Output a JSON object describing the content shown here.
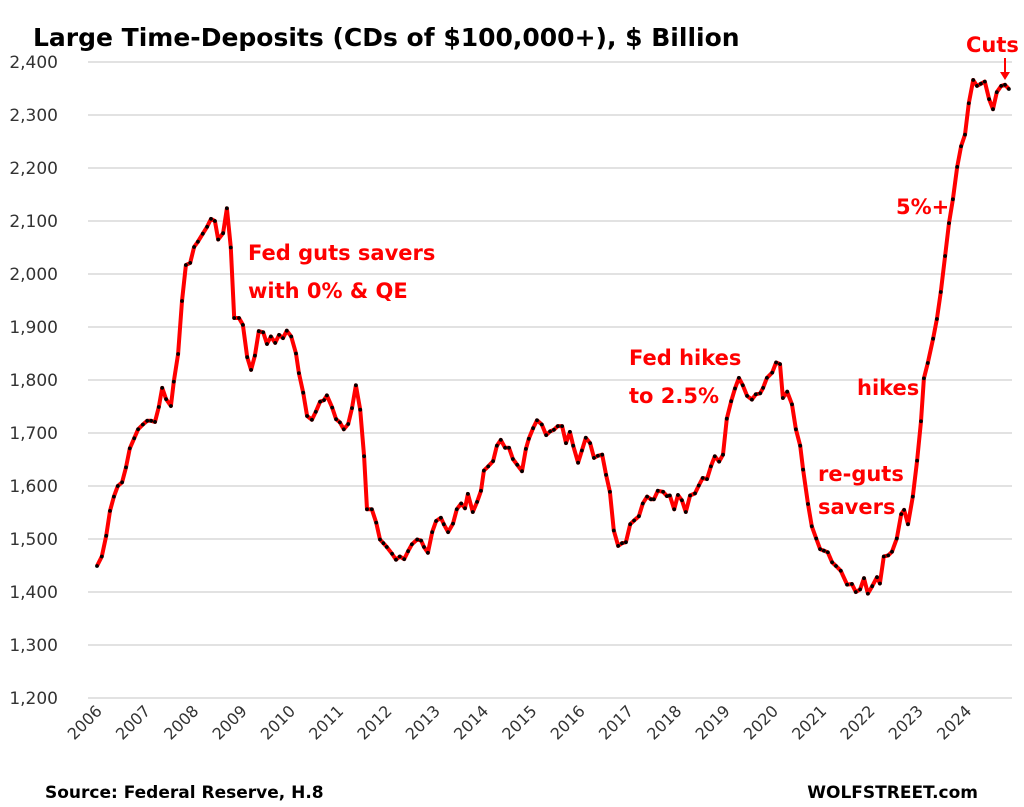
{
  "chart_data": {
    "type": "line",
    "title": "Large Time-Deposits (CDs of $100,000+), $ Billion",
    "xlabel": "",
    "ylabel": "",
    "ylim": [
      1200,
      2400
    ],
    "yticks": [
      "1,200",
      "1,300",
      "1,400",
      "1,500",
      "1,600",
      "1,700",
      "1,800",
      "1,900",
      "2,000",
      "2,100",
      "2,200",
      "2,300",
      "2,400"
    ],
    "ytick_values": [
      1200,
      1300,
      1400,
      1500,
      1600,
      1700,
      1800,
      1900,
      2000,
      2100,
      2200,
      2300,
      2400
    ],
    "xticks": [
      "2006",
      "2007",
      "2008",
      "2009",
      "2010",
      "2011",
      "2012",
      "2013",
      "2014",
      "2015",
      "2016",
      "2017",
      "2018",
      "2019",
      "2020",
      "2021",
      "2022",
      "2023",
      "2024"
    ],
    "grid": "horizontal",
    "colors": {
      "line": "#ff0000",
      "markers": "#000000",
      "annotations": "#ff0000",
      "grid": "#d9d9d9"
    },
    "series": [
      {
        "points": [
          [
            2006.0,
            1449
          ],
          [
            2006.1,
            1467
          ],
          [
            2006.19,
            1506
          ],
          [
            2006.27,
            1553
          ],
          [
            2006.35,
            1580
          ],
          [
            2006.43,
            1600
          ],
          [
            2006.52,
            1607
          ],
          [
            2006.6,
            1635
          ],
          [
            2006.68,
            1671
          ],
          [
            2006.77,
            1690
          ],
          [
            2006.85,
            1707
          ],
          [
            2006.95,
            1716
          ],
          [
            2007.04,
            1723
          ],
          [
            2007.12,
            1723
          ],
          [
            2007.2,
            1721
          ],
          [
            2007.28,
            1749
          ],
          [
            2007.35,
            1785
          ],
          [
            2007.43,
            1764
          ],
          [
            2007.53,
            1751
          ],
          [
            2007.59,
            1797
          ],
          [
            2007.68,
            1849
          ],
          [
            2007.76,
            1949
          ],
          [
            2007.84,
            2017
          ],
          [
            2007.93,
            2021
          ],
          [
            2008.01,
            2051
          ],
          [
            2008.09,
            2061
          ],
          [
            2008.19,
            2076
          ],
          [
            2008.28,
            2089
          ],
          [
            2008.36,
            2104
          ],
          [
            2008.44,
            2100
          ],
          [
            2008.51,
            2065
          ],
          [
            2008.61,
            2077
          ],
          [
            2008.69,
            2124
          ],
          [
            2008.77,
            2050
          ],
          [
            2008.84,
            1917
          ],
          [
            2008.94,
            1917
          ],
          [
            2009.02,
            1904
          ],
          [
            2009.11,
            1843
          ],
          [
            2009.19,
            1819
          ],
          [
            2009.27,
            1846
          ],
          [
            2009.35,
            1892
          ],
          [
            2009.44,
            1890
          ],
          [
            2009.52,
            1868
          ],
          [
            2009.6,
            1882
          ],
          [
            2009.69,
            1870
          ],
          [
            2009.77,
            1885
          ],
          [
            2009.85,
            1879
          ],
          [
            2009.93,
            1893
          ],
          [
            2010.02,
            1882
          ],
          [
            2010.12,
            1850
          ],
          [
            2010.18,
            1813
          ],
          [
            2010.27,
            1776
          ],
          [
            2010.35,
            1732
          ],
          [
            2010.45,
            1725
          ],
          [
            2010.53,
            1740
          ],
          [
            2010.62,
            1759
          ],
          [
            2010.7,
            1762
          ],
          [
            2010.76,
            1771
          ],
          [
            2010.87,
            1748
          ],
          [
            2010.95,
            1726
          ],
          [
            2011.03,
            1720
          ],
          [
            2011.11,
            1707
          ],
          [
            2011.2,
            1717
          ],
          [
            2011.28,
            1747
          ],
          [
            2011.36,
            1790
          ],
          [
            2011.45,
            1744
          ],
          [
            2011.53,
            1656
          ],
          [
            2011.59,
            1556
          ],
          [
            2011.69,
            1556
          ],
          [
            2011.78,
            1531
          ],
          [
            2011.86,
            1499
          ],
          [
            2011.93,
            1492
          ],
          [
            2012.0,
            1485
          ],
          [
            2012.11,
            1472
          ],
          [
            2012.19,
            1461
          ],
          [
            2012.27,
            1467
          ],
          [
            2012.36,
            1462
          ],
          [
            2012.44,
            1477
          ],
          [
            2012.52,
            1490
          ],
          [
            2012.63,
            1499
          ],
          [
            2012.71,
            1497
          ],
          [
            2012.77,
            1485
          ],
          [
            2012.85,
            1474
          ],
          [
            2012.94,
            1513
          ],
          [
            2013.02,
            1534
          ],
          [
            2013.12,
            1540
          ],
          [
            2013.18,
            1528
          ],
          [
            2013.27,
            1513
          ],
          [
            2013.37,
            1529
          ],
          [
            2013.45,
            1556
          ],
          [
            2013.54,
            1567
          ],
          [
            2013.62,
            1558
          ],
          [
            2013.68,
            1585
          ],
          [
            2013.78,
            1551
          ],
          [
            2013.87,
            1570
          ],
          [
            2013.95,
            1591
          ],
          [
            2014.01,
            1629
          ],
          [
            2014.1,
            1637
          ],
          [
            2014.2,
            1647
          ],
          [
            2014.28,
            1676
          ],
          [
            2014.36,
            1687
          ],
          [
            2014.45,
            1672
          ],
          [
            2014.53,
            1672
          ],
          [
            2014.61,
            1651
          ],
          [
            2014.7,
            1640
          ],
          [
            2014.8,
            1628
          ],
          [
            2014.88,
            1670
          ],
          [
            2014.94,
            1689
          ],
          [
            2015.03,
            1709
          ],
          [
            2015.11,
            1724
          ],
          [
            2015.21,
            1716
          ],
          [
            2015.3,
            1696
          ],
          [
            2015.38,
            1703
          ],
          [
            2015.46,
            1706
          ],
          [
            2015.54,
            1713
          ],
          [
            2015.63,
            1713
          ],
          [
            2015.71,
            1681
          ],
          [
            2015.79,
            1702
          ],
          [
            2015.86,
            1676
          ],
          [
            2015.96,
            1644
          ],
          [
            2016.04,
            1667
          ],
          [
            2016.12,
            1691
          ],
          [
            2016.21,
            1681
          ],
          [
            2016.29,
            1653
          ],
          [
            2016.37,
            1657
          ],
          [
            2016.46,
            1659
          ],
          [
            2016.54,
            1621
          ],
          [
            2016.62,
            1589
          ],
          [
            2016.7,
            1516
          ],
          [
            2016.79,
            1487
          ],
          [
            2016.87,
            1492
          ],
          [
            2016.95,
            1494
          ],
          [
            2017.04,
            1528
          ],
          [
            2017.12,
            1535
          ],
          [
            2017.22,
            1543
          ],
          [
            2017.3,
            1567
          ],
          [
            2017.39,
            1580
          ],
          [
            2017.47,
            1575
          ],
          [
            2017.53,
            1575
          ],
          [
            2017.61,
            1591
          ],
          [
            2017.72,
            1589
          ],
          [
            2017.8,
            1581
          ],
          [
            2017.86,
            1582
          ],
          [
            2017.95,
            1556
          ],
          [
            2018.03,
            1583
          ],
          [
            2018.11,
            1573
          ],
          [
            2018.19,
            1551
          ],
          [
            2018.28,
            1582
          ],
          [
            2018.38,
            1586
          ],
          [
            2018.46,
            1601
          ],
          [
            2018.54,
            1615
          ],
          [
            2018.63,
            1613
          ],
          [
            2018.71,
            1637
          ],
          [
            2018.79,
            1656
          ],
          [
            2018.88,
            1646
          ],
          [
            2018.96,
            1659
          ],
          [
            2019.04,
            1727
          ],
          [
            2019.13,
            1760
          ],
          [
            2019.21,
            1784
          ],
          [
            2019.29,
            1804
          ],
          [
            2019.37,
            1790
          ],
          [
            2019.46,
            1770
          ],
          [
            2019.56,
            1763
          ],
          [
            2019.64,
            1773
          ],
          [
            2019.73,
            1775
          ],
          [
            2019.79,
            1785
          ],
          [
            2019.87,
            1804
          ],
          [
            2019.98,
            1814
          ],
          [
            2020.06,
            1833
          ],
          [
            2020.14,
            1830
          ],
          [
            2020.2,
            1766
          ],
          [
            2020.29,
            1778
          ],
          [
            2020.39,
            1754
          ],
          [
            2020.47,
            1707
          ],
          [
            2020.56,
            1676
          ],
          [
            2020.62,
            1631
          ],
          [
            2020.72,
            1566
          ],
          [
            2020.8,
            1524
          ],
          [
            2020.89,
            1501
          ],
          [
            2020.97,
            1481
          ],
          [
            2021.05,
            1478
          ],
          [
            2021.13,
            1475
          ],
          [
            2021.22,
            1456
          ],
          [
            2021.3,
            1449
          ],
          [
            2021.4,
            1440
          ],
          [
            2021.53,
            1414
          ],
          [
            2021.63,
            1415
          ],
          [
            2021.71,
            1400
          ],
          [
            2021.8,
            1405
          ],
          [
            2021.88,
            1426
          ],
          [
            2021.96,
            1397
          ],
          [
            2022.05,
            1411
          ],
          [
            2022.15,
            1428
          ],
          [
            2022.21,
            1416
          ],
          [
            2022.29,
            1467
          ],
          [
            2022.38,
            1469
          ],
          [
            2022.46,
            1476
          ],
          [
            2022.56,
            1501
          ],
          [
            2022.65,
            1547
          ],
          [
            2022.71,
            1555
          ],
          [
            2022.79,
            1528
          ],
          [
            2022.89,
            1580
          ],
          [
            2022.98,
            1648
          ],
          [
            2023.06,
            1722
          ],
          [
            2023.12,
            1803
          ],
          [
            2023.2,
            1832
          ],
          [
            2023.31,
            1878
          ],
          [
            2023.39,
            1915
          ],
          [
            2023.47,
            1966
          ],
          [
            2023.56,
            2034
          ],
          [
            2023.64,
            2096
          ],
          [
            2023.72,
            2141
          ],
          [
            2023.81,
            2202
          ],
          [
            2023.89,
            2241
          ],
          [
            2023.97,
            2263
          ],
          [
            2024.05,
            2322
          ],
          [
            2024.14,
            2366
          ],
          [
            2024.22,
            2355
          ],
          [
            2024.3,
            2359
          ],
          [
            2024.38,
            2363
          ],
          [
            2024.47,
            2330
          ],
          [
            2024.55,
            2311
          ],
          [
            2024.63,
            2343
          ],
          [
            2024.72,
            2355
          ],
          [
            2024.8,
            2357
          ],
          [
            2024.88,
            2349
          ]
        ]
      }
    ],
    "annotations": [
      {
        "lines": [
          "Fed guts savers",
          "with 0% & QE"
        ]
      },
      {
        "lines": [
          "Fed hikes",
          "to 2.5%"
        ]
      },
      {
        "lines": [
          "re-guts",
          "savers"
        ]
      },
      {
        "lines": [
          "hikes"
        ]
      },
      {
        "lines": [
          "5%+"
        ]
      },
      {
        "lines": [
          "Cuts"
        ]
      }
    ]
  },
  "footer": {
    "source": "Source: Federal Reserve, H.8",
    "brand": "WOLFSTREET.com"
  }
}
